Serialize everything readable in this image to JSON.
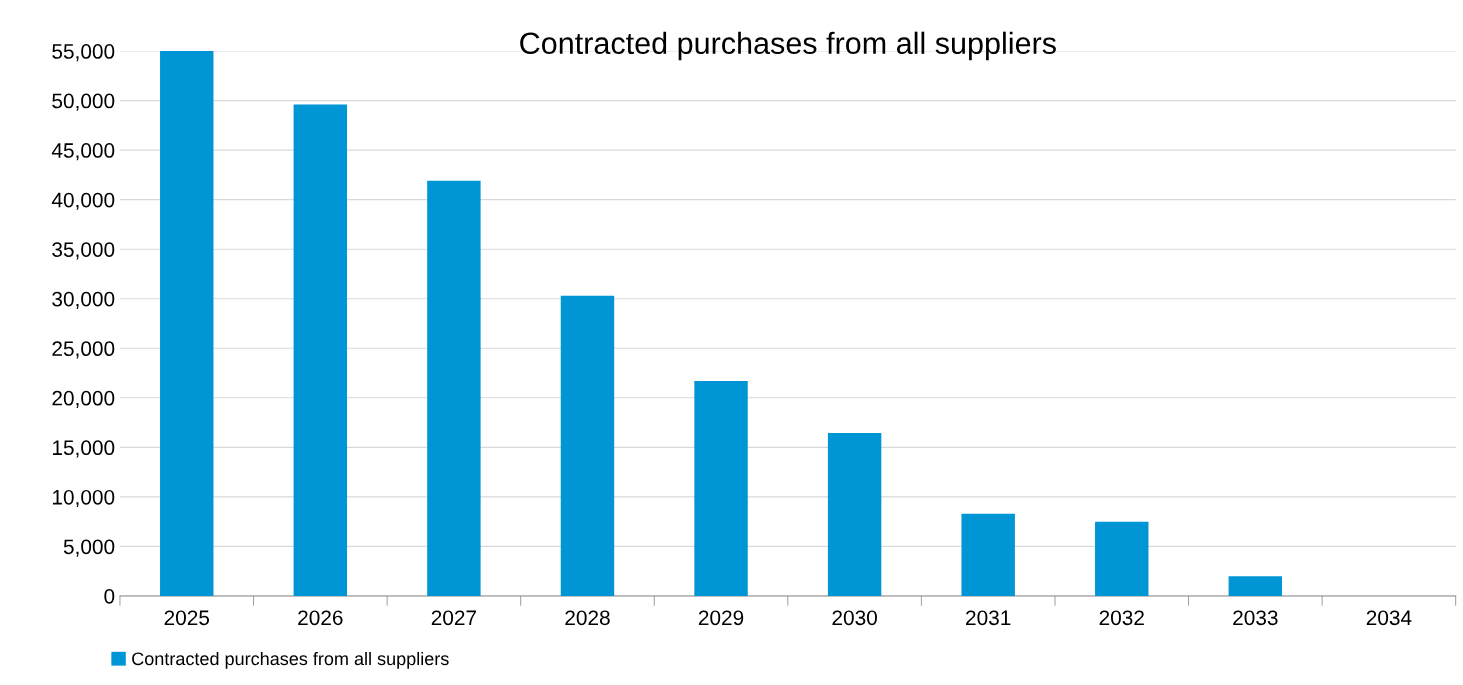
{
  "chart_data": {
    "type": "bar",
    "title": "Contracted purchases from all suppliers",
    "categories": [
      "2025",
      "2026",
      "2027",
      "2028",
      "2029",
      "2030",
      "2031",
      "2032",
      "2033",
      "2034"
    ],
    "series": [
      {
        "name": "Contracted purchases from all suppliers",
        "color": "#0096d6",
        "values": [
          55000,
          49600,
          41900,
          30300,
          21700,
          16450,
          8300,
          7500,
          2000,
          0
        ]
      }
    ],
    "ylim": [
      0,
      55000
    ],
    "yticks": [
      0,
      {
        "value": 5000,
        "label": "5,000"
      },
      {
        "value": 10000,
        "label": "10,000"
      },
      {
        "value": 15000,
        "label": "15,000"
      },
      {
        "value": 20000,
        "label": "20,000"
      },
      {
        "value": 25000,
        "label": "25,000"
      },
      {
        "value": 30000,
        "label": "30,000"
      },
      {
        "value": 35000,
        "label": "35,000"
      },
      {
        "value": 40000,
        "label": "40,000"
      },
      {
        "value": 45000,
        "label": "45,000"
      },
      {
        "value": 50000,
        "label": "50,000"
      },
      {
        "value": 55000,
        "label": "55,000"
      }
    ],
    "grid": "y",
    "legend": "bottom left"
  }
}
